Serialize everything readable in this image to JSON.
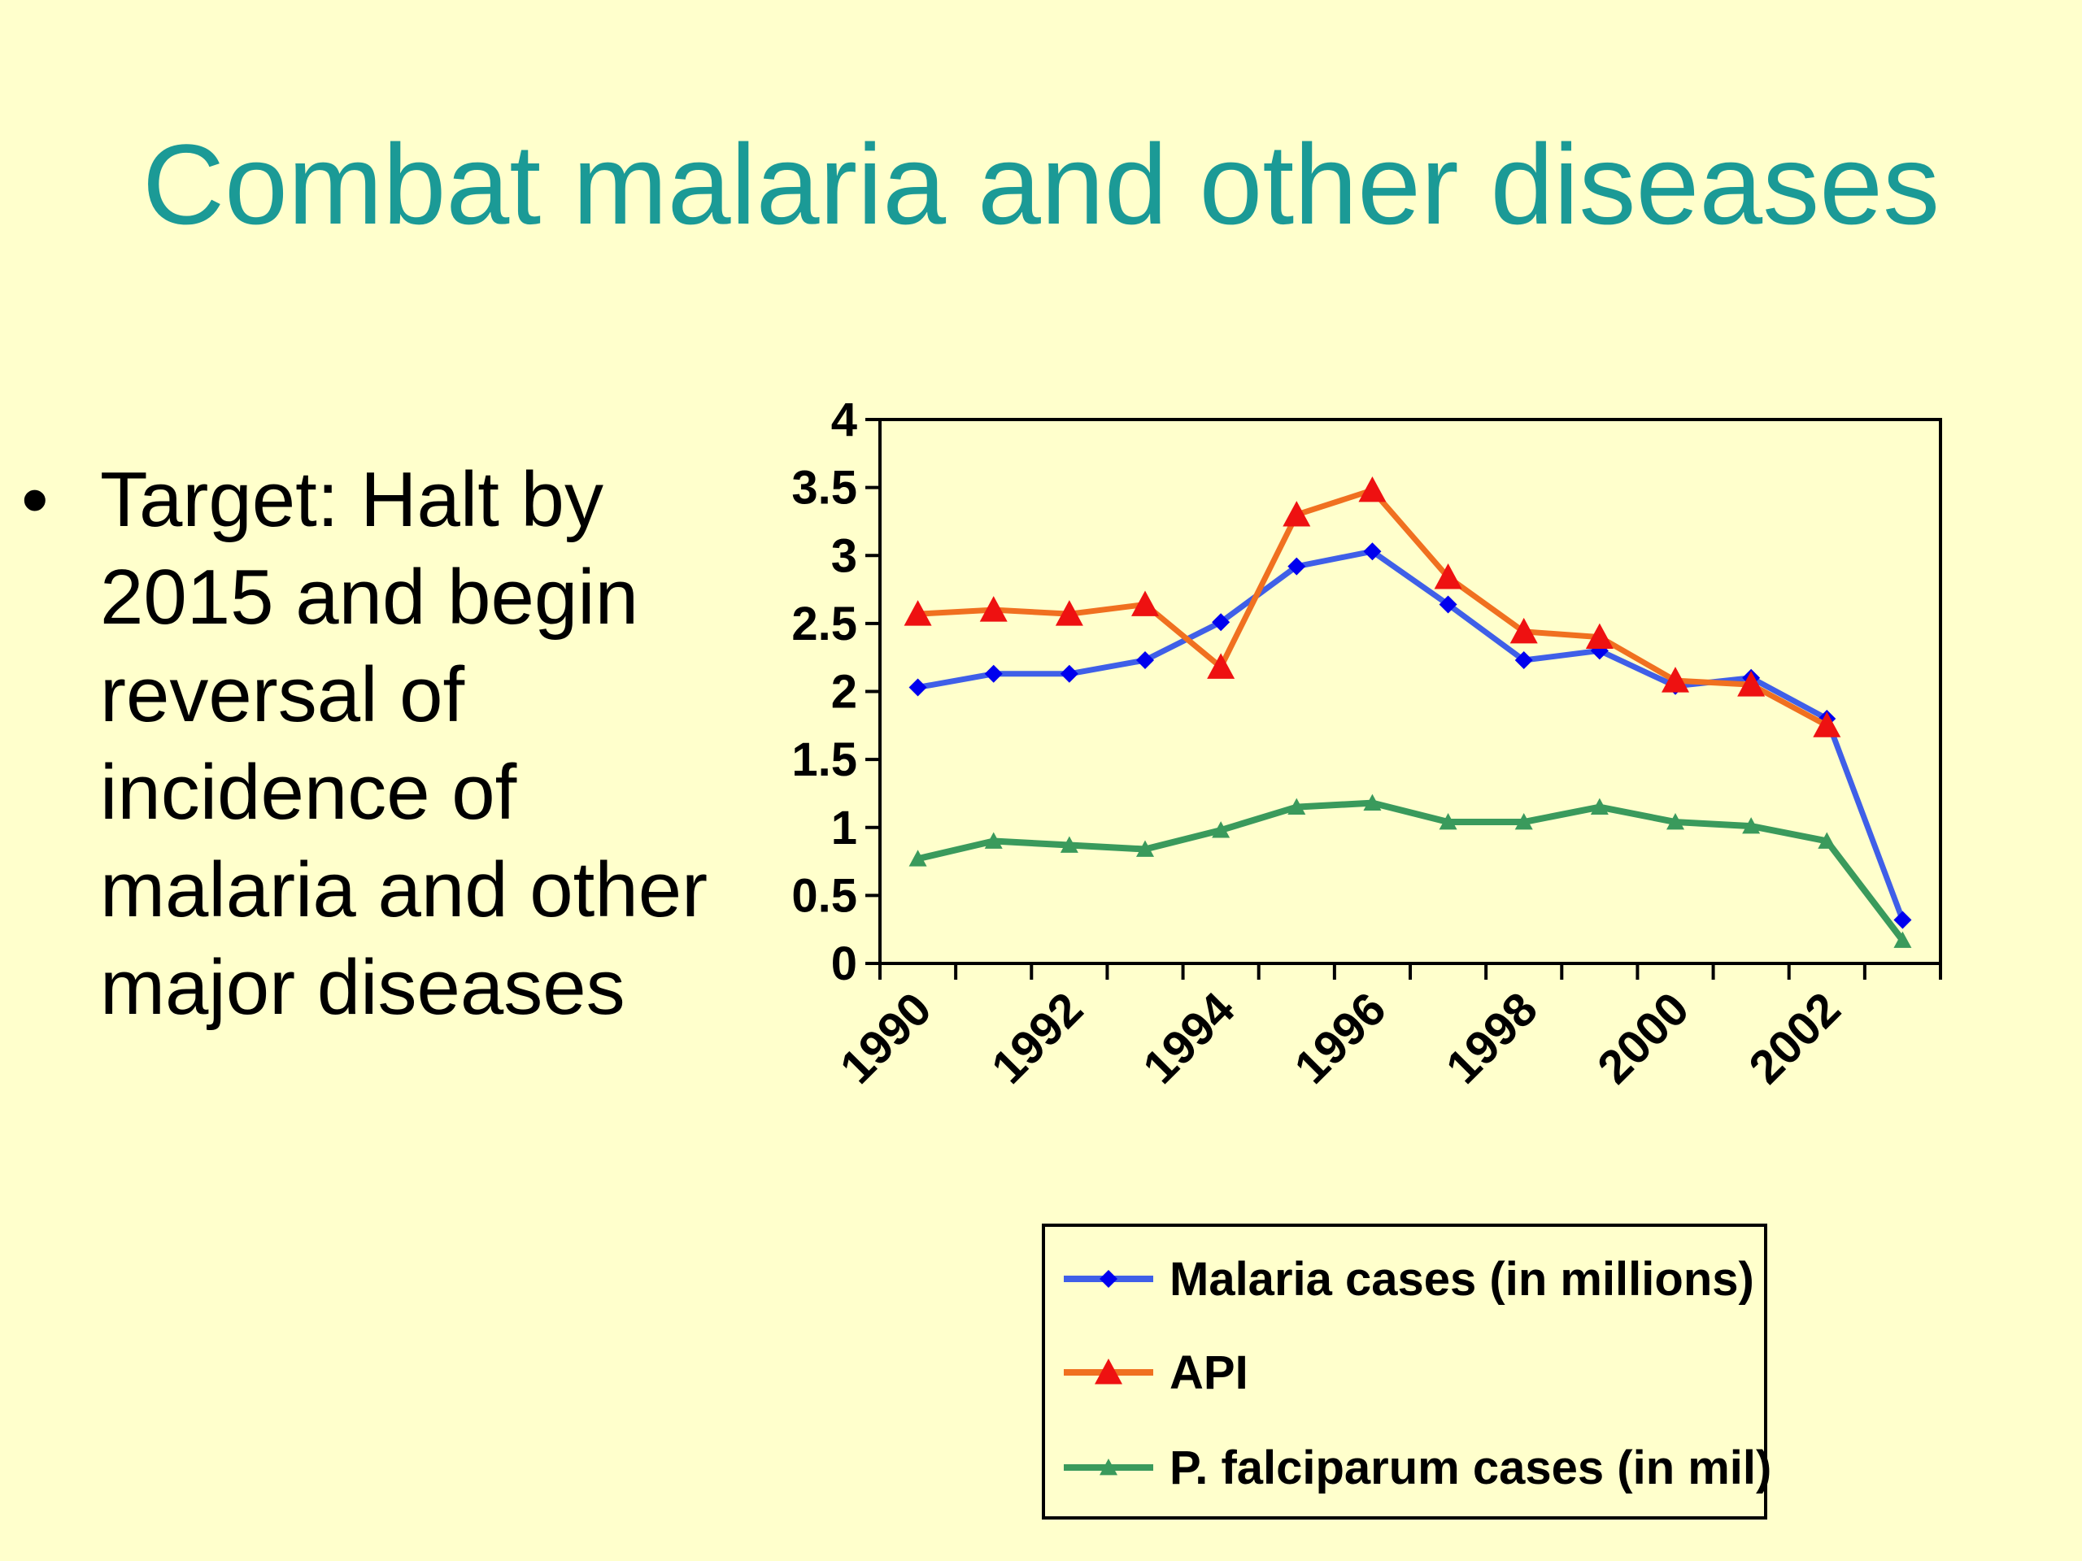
{
  "slide": {
    "title": "Combat malaria and other diseases",
    "bullet": "Target: Halt by 2015 and begin reversal of incidence of malaria and other major diseases",
    "bullet_symbol": "•"
  },
  "chart_data": {
    "type": "line",
    "x": [
      1990,
      1991,
      1992,
      1993,
      1994,
      1995,
      1996,
      1997,
      1998,
      1999,
      2000,
      2001,
      2002,
      2003
    ],
    "x_tick_labels": [
      "1990",
      "1992",
      "1994",
      "1996",
      "1998",
      "2000",
      "2002"
    ],
    "y_ticks": [
      "0",
      "0.5",
      "1",
      "1.5",
      "2",
      "2.5",
      "3",
      "3.5",
      "4"
    ],
    "ylim": [
      0,
      4
    ],
    "grid": false,
    "legend_position": "bottom",
    "series": [
      {
        "name": "Malaria cases (in millions)",
        "color": "#3f5fe8",
        "marker": "diamond",
        "marker_color": "#0000ee",
        "values": [
          2.03,
          2.13,
          2.13,
          2.23,
          2.51,
          2.92,
          3.03,
          2.64,
          2.23,
          2.3,
          2.04,
          2.1,
          1.8,
          0.32
        ]
      },
      {
        "name": "API",
        "color": "#f07020",
        "marker": "triangle",
        "marker_color": "#ee1111",
        "values": [
          2.57,
          2.6,
          2.57,
          2.64,
          2.18,
          3.3,
          3.48,
          2.84,
          2.44,
          2.4,
          2.08,
          2.05,
          1.75,
          null
        ]
      },
      {
        "name": "P. falciparum cases (in mil)",
        "color": "#3a9a5c",
        "marker": "triangle",
        "marker_color": "#3a9a5c",
        "values": [
          0.77,
          0.9,
          0.87,
          0.84,
          0.98,
          1.15,
          1.18,
          1.04,
          1.04,
          1.15,
          1.04,
          1.01,
          0.9,
          0.17
        ]
      }
    ]
  }
}
